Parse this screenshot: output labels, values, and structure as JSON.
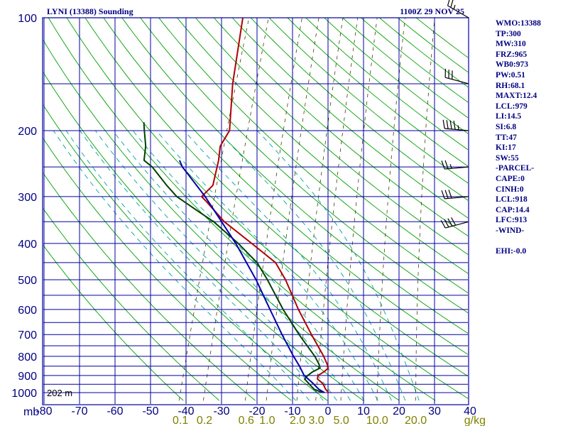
{
  "header": {
    "station_title": "LYNI (13388) Sounding",
    "datetime": "1100Z 29 NOV 25"
  },
  "chart_data": {
    "type": "skew-t log-p sounding",
    "pressure_axis": {
      "unit_label": "mb",
      "ticks": [
        100,
        200,
        300,
        400,
        500,
        600,
        700,
        800,
        900,
        1000
      ],
      "range": [
        100,
        1000
      ]
    },
    "temperature_axis": {
      "ticks": [
        -80,
        -70,
        -60,
        -50,
        -40,
        -30,
        -20,
        -10,
        0,
        10,
        20,
        30,
        40
      ],
      "tick_labels": [
        "-80",
        "-70",
        "-60",
        "-50",
        "-40",
        "-30",
        "-20",
        "-10",
        "0",
        "10",
        "20",
        "30",
        "40"
      ],
      "unit": "°C"
    },
    "isobars_mb": [
      100,
      150,
      200,
      250,
      300,
      350,
      400,
      450,
      500,
      550,
      600,
      650,
      700,
      750,
      800,
      850,
      900,
      950,
      1000
    ],
    "mixing_ratio_axis": {
      "unit_label": "g/kg",
      "values": [
        0.1,
        0.2,
        0.6,
        1.0,
        2.0,
        3.0,
        5.0,
        10.0,
        20.0
      ],
      "labels": [
        "0.1",
        "0.2",
        "0.6",
        "1.0",
        "2.0",
        "3.0",
        "5.0",
        "10.0",
        "20.0"
      ]
    },
    "surface_height_label": "202 m",
    "series": [
      {
        "name": "temperature",
        "color": "#b00000",
        "points": [
          [
            1000,
            0.2
          ],
          [
            980,
            -1
          ],
          [
            955,
            -2
          ],
          [
            940,
            -2.8
          ],
          [
            920,
            -4.4
          ],
          [
            900,
            -4.6
          ],
          [
            880,
            -3.3
          ],
          [
            860,
            -2.5
          ],
          [
            840,
            -3.2
          ],
          [
            800,
            -5
          ],
          [
            700,
            -10.7
          ],
          [
            600,
            -17
          ],
          [
            500,
            -23.7
          ],
          [
            450,
            -28.3
          ],
          [
            400,
            -37
          ],
          [
            350,
            -47
          ],
          [
            310,
            -54
          ],
          [
            300,
            -56
          ],
          [
            280,
            -54
          ],
          [
            240,
            -55
          ],
          [
            220,
            -56
          ],
          [
            200,
            -55
          ],
          [
            150,
            -59
          ],
          [
            100,
            -63
          ]
        ]
      },
      {
        "name": "dewpoint",
        "color": "#004000",
        "points": [
          [
            1000,
            -1.5
          ],
          [
            980,
            -4.2
          ],
          [
            955,
            -5.8
          ],
          [
            940,
            -6.7
          ],
          [
            920,
            -8
          ],
          [
            900,
            -7.5
          ],
          [
            880,
            -6.5
          ],
          [
            860,
            -4.8
          ],
          [
            840,
            -5.5
          ],
          [
            800,
            -7.5
          ],
          [
            700,
            -14.2
          ],
          [
            600,
            -21.3
          ],
          [
            500,
            -28.8
          ],
          [
            450,
            -33.5
          ],
          [
            400,
            -40.8
          ],
          [
            350,
            -50
          ],
          [
            330,
            -55
          ],
          [
            300,
            -63
          ],
          [
            280,
            -67
          ],
          [
            250,
            -73
          ],
          [
            240,
            -76
          ],
          [
            220,
            -77
          ],
          [
            200,
            -79
          ],
          [
            190,
            -80
          ]
        ]
      },
      {
        "name": "parcel",
        "color": "#0000b0",
        "points": [
          [
            1000,
            -1.0
          ],
          [
            979,
            -3.0
          ],
          [
            940,
            -5.5
          ],
          [
            920,
            -7.0
          ],
          [
            900,
            -8.5
          ],
          [
            880,
            -9.4
          ],
          [
            850,
            -10.8
          ],
          [
            800,
            -13.5
          ],
          [
            700,
            -19
          ],
          [
            600,
            -25
          ],
          [
            500,
            -32
          ],
          [
            400,
            -41.5
          ],
          [
            300,
            -55
          ],
          [
            250,
            -64.5
          ],
          [
            240,
            -66
          ]
        ]
      }
    ],
    "wind_barbs": [
      {
        "pressure": 100,
        "direction_deg": 300,
        "speed_kt": 25
      },
      {
        "pressure": 150,
        "direction_deg": 285,
        "speed_kt": 30
      },
      {
        "pressure": 200,
        "direction_deg": 275,
        "speed_kt": 45
      },
      {
        "pressure": 250,
        "direction_deg": 265,
        "speed_kt": 25
      },
      {
        "pressure": 300,
        "direction_deg": 265,
        "speed_kt": 30
      },
      {
        "pressure": 350,
        "direction_deg": 255,
        "speed_kt": 40
      }
    ],
    "dry_adiabat_thetas_K": [
      230,
      240,
      250,
      260,
      270,
      280,
      290,
      300,
      310,
      320,
      330,
      340,
      350,
      360,
      370,
      380,
      390,
      400,
      410,
      420,
      430,
      440,
      450,
      460,
      470,
      480,
      490,
      500
    ],
    "moist_adiabat_thetaw_K": [
      262,
      266,
      270,
      274,
      278,
      282,
      286,
      290,
      294,
      298
    ],
    "grid_colors": {
      "isobar_isotherm": "#0000a0",
      "dry_adiabat": "#00a000",
      "moist_adiabat": "#00a0a0",
      "mixing_ratio": "#404000"
    }
  },
  "indices": [
    "WMO:13388",
    "TP:300",
    "MW:310",
    "FRZ:965",
    "WB0:973",
    "PW:0.51",
    "RH:68.1",
    "MAXT:12.4",
    "LCL:979",
    "LI:14.5",
    "SI:6.8",
    "TT:47",
    "KI:17",
    "SW:55",
    "-PARCEL-",
    "CAPE:0",
    "CINH:0",
    "LCL:918",
    "CAP:14.4",
    "LFC:913",
    "-WIND-",
    "",
    "EHI:-0.0"
  ]
}
